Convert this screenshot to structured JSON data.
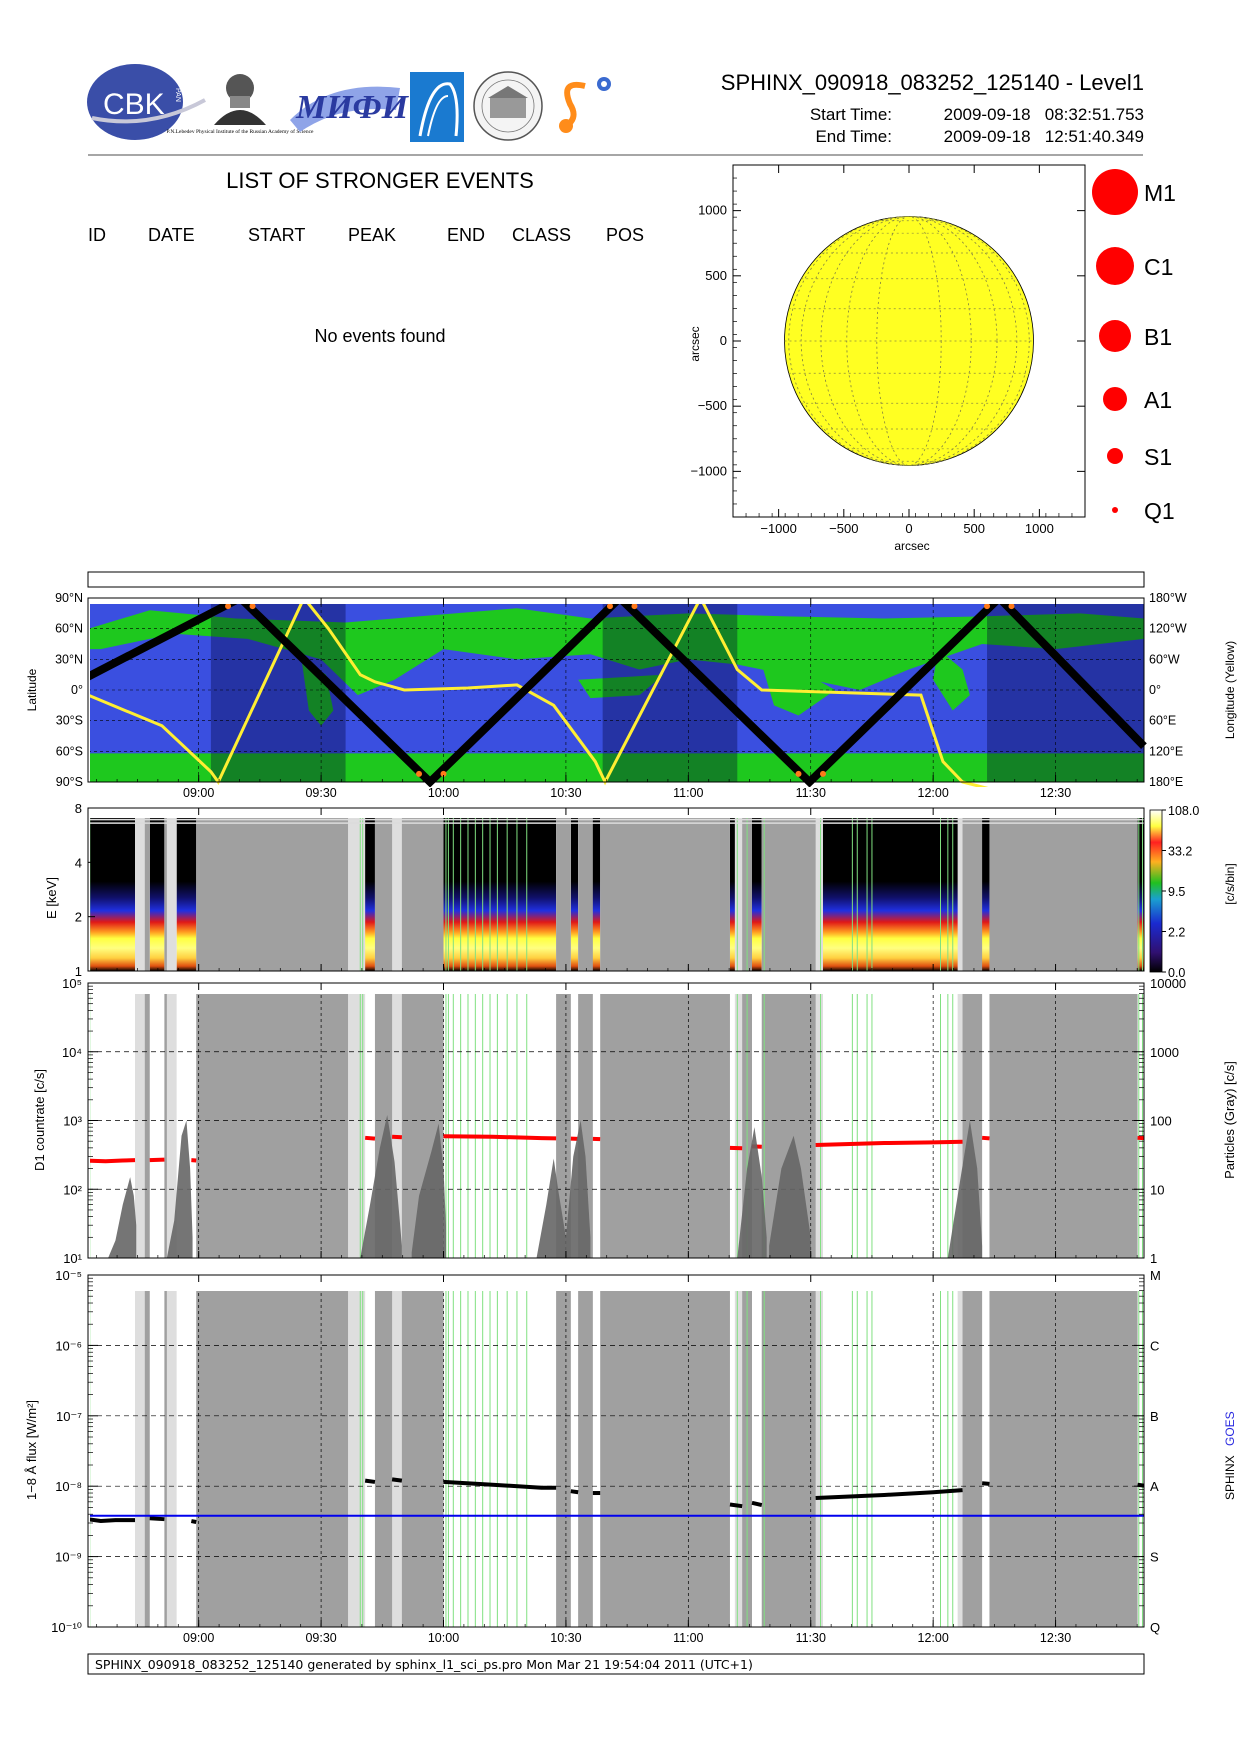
{
  "header": {
    "title": "SPHINX_090918_083252_125140 - Level1",
    "start_label": "Start Time:",
    "start_value": "2009-09-18   08:32:51.753",
    "end_label": "End Time:",
    "end_value": "2009-09-18   12:51:40.349"
  },
  "logos": {
    "cbk": "CBK",
    "cbk_small": "PAN",
    "lebedev_caption": "P.N.Lebedev Physical Institute of the Russian Academy of Science",
    "mifi": "МИФИ"
  },
  "events": {
    "title": "LIST OF STRONGER EVENTS",
    "columns": [
      "ID",
      "DATE",
      "START",
      "PEAK",
      "END",
      "CLASS",
      "POS"
    ],
    "empty_text": "No events found"
  },
  "sun_legend": [
    "M1",
    "C1",
    "B1",
    "A1",
    "S1",
    "Q1"
  ],
  "footer": "SPHINX_090918_083252_125140 generated by sphinx_l1_sci_ps.pro Mon Mar 21 19:54:04 2011 (UTC+1)",
  "colors": {
    "sun_fill": "#ffff22",
    "flare_marker": "#ff0000",
    "ocean": "#3a4fe0",
    "land": "#1ec81e",
    "track": "#000000",
    "longitude_line": "#ffee33",
    "countrate": "#ff0000",
    "particles": "#666666",
    "sphinx_flux": "#000000",
    "goes_flux": "#0000ee",
    "gap_dark": "#a0a0a0",
    "gap_light": "#dedede"
  },
  "chart_data": [
    {
      "type": "scatter",
      "name": "sun_disk_map",
      "xlabel": "arcsec",
      "ylabel": "arcsec",
      "xlim": [
        -1350,
        1350
      ],
      "ylim": [
        -1350,
        1350
      ],
      "xticks": [
        -1000,
        -500,
        0,
        500,
        1000
      ],
      "yticks": [
        -1000,
        -500,
        0,
        500,
        1000
      ],
      "xtick_labels": [
        "−1000",
        "−500",
        "0",
        "500",
        "1000"
      ],
      "ytick_labels": [
        "−1000",
        "−500",
        "0",
        "500",
        "1000"
      ],
      "disk_radius": 955,
      "events": []
    },
    {
      "type": "line",
      "name": "orbit_map",
      "x_unit": "UT hours",
      "xlim": [
        8.5479,
        12.8612
      ],
      "ylabel": "Latitude",
      "ylabel_right": "Longitude (Yellow)",
      "ylim": [
        -90,
        90
      ],
      "yticks": [
        90,
        60,
        30,
        0,
        -30,
        -60,
        -90
      ],
      "ytick_labels": [
        "90°N",
        "60°N",
        "30°N",
        "0°",
        "30°S",
        "60°S",
        "90°S"
      ],
      "ytick_labels_right": [
        "180°W",
        "120°W",
        "60°W",
        "0°",
        "60°E",
        "120°E",
        "180°E"
      ],
      "latitude_track": [
        [
          8.548,
          13
        ],
        [
          9.17,
          90
        ],
        [
          9.945,
          -90
        ],
        [
          10.72,
          90
        ],
        [
          11.495,
          -90
        ],
        [
          12.27,
          90
        ],
        [
          12.861,
          -55
        ]
      ],
      "longitude_track": [
        [
          8.548,
          -5
        ],
        [
          8.85,
          -35
        ],
        [
          9.05,
          -80
        ],
        [
          9.08,
          -90
        ],
        [
          9.43,
          90
        ],
        [
          9.53,
          60
        ],
        [
          9.66,
          15
        ],
        [
          9.72,
          8
        ],
        [
          9.84,
          0
        ],
        [
          10.1,
          2
        ],
        [
          10.3,
          5
        ],
        [
          10.45,
          -15
        ],
        [
          10.62,
          -70
        ],
        [
          10.66,
          -90
        ],
        [
          11.05,
          90
        ],
        [
          11.2,
          20
        ],
        [
          11.3,
          0
        ],
        [
          11.95,
          -5
        ],
        [
          12.04,
          -70
        ],
        [
          12.12,
          -90
        ],
        [
          12.45,
          -110
        ],
        [
          12.861,
          -120
        ]
      ],
      "night_intervals": [
        [
          9.05,
          9.6
        ],
        [
          10.65,
          11.2
        ],
        [
          12.22,
          12.861
        ]
      ]
    },
    {
      "type": "heatmap",
      "name": "spectrogram",
      "ylabel": "E [keV]",
      "y_scale": "log",
      "ylim": [
        1,
        8
      ],
      "yticks": [
        1,
        2,
        4,
        8
      ],
      "colorbar_label": "[c/s/bin]",
      "colorbar_ticks": [
        "108.0",
        "33.2",
        "9.5",
        "2.2",
        "0.0"
      ]
    },
    {
      "type": "line",
      "name": "countrate",
      "ylabel": "D1 countrate [c/s]",
      "ylabel_right": "Particles (Gray) [c/s]",
      "y_scale": "log",
      "ylim": [
        10,
        100000
      ],
      "ytick_labels": [
        "10¹",
        "10²",
        "10³",
        "10⁴",
        "10⁵"
      ],
      "ytick_labels_right": [
        "1",
        "10",
        "100",
        "1000",
        "10000"
      ],
      "series": [
        {
          "color": "#ff0000",
          "segments": [
            [
              [
                8.556,
                260
              ],
              [
                8.62,
                255
              ],
              [
                8.69,
                262
              ],
              [
                8.74,
                265
              ]
            ],
            [
              [
                8.8,
                265
              ],
              [
                8.86,
                270
              ]
            ],
            [
              [
                8.97,
                265
              ],
              [
                8.99,
                262
              ]
            ],
            [
              [
                9.68,
                560
              ],
              [
                9.72,
                545
              ]
            ],
            [
              [
                9.79,
                580
              ],
              [
                9.83,
                570
              ]
            ],
            [
              [
                10.0,
                590
              ],
              [
                10.2,
                580
              ],
              [
                10.4,
                555
              ],
              [
                10.46,
                550
              ]
            ],
            [
              [
                10.52,
                545
              ],
              [
                10.55,
                540
              ]
            ],
            [
              [
                10.61,
                540
              ],
              [
                10.64,
                535
              ]
            ],
            [
              [
                11.17,
                400
              ],
              [
                11.22,
                395
              ]
            ],
            [
              [
                11.26,
                420
              ],
              [
                11.3,
                415
              ]
            ],
            [
              [
                11.52,
                440
              ],
              [
                11.8,
                470
              ],
              [
                12.0,
                480
              ],
              [
                12.12,
                490
              ]
            ],
            [
              [
                12.2,
                560
              ],
              [
                12.23,
                550
              ]
            ],
            [
              [
                12.835,
                560
              ],
              [
                12.86,
                555
              ]
            ]
          ]
        },
        {
          "color": "#666666",
          "segments": [
            [
              [
                8.63,
                10
              ],
              [
                8.66,
                18
              ],
              [
                8.69,
                60
              ],
              [
                8.72,
                150
              ],
              [
                8.735,
                80
              ],
              [
                8.745,
                30
              ]
            ],
            [
              [
                8.87,
                10
              ],
              [
                8.9,
                35
              ],
              [
                8.93,
                600
              ],
              [
                8.95,
                1000
              ],
              [
                8.965,
                200
              ],
              [
                8.975,
                20
              ]
            ],
            [
              [
                9.66,
                10
              ],
              [
                9.7,
                60
              ],
              [
                9.74,
                400
              ],
              [
                9.77,
                1200
              ],
              [
                9.8,
                250
              ],
              [
                9.82,
                40
              ],
              [
                9.83,
                15
              ]
            ],
            [
              [
                9.87,
                12
              ],
              [
                9.9,
                80
              ],
              [
                9.95,
                350
              ],
              [
                9.98,
                900
              ],
              [
                10.0,
                200
              ],
              [
                10.01,
                30
              ]
            ],
            [
              [
                10.38,
                10
              ],
              [
                10.42,
                60
              ],
              [
                10.45,
                280
              ],
              [
                10.47,
                90
              ],
              [
                10.5,
                20
              ]
            ],
            [
              [
                10.5,
                20
              ],
              [
                10.53,
                300
              ],
              [
                10.56,
                1000
              ],
              [
                10.58,
                300
              ],
              [
                10.6,
                20
              ]
            ],
            [
              [
                11.2,
                10
              ],
              [
                11.24,
                200
              ],
              [
                11.27,
                800
              ],
              [
                11.3,
                150
              ],
              [
                11.32,
                20
              ]
            ],
            [
              [
                11.33,
                15
              ],
              [
                11.38,
                200
              ],
              [
                11.43,
                600
              ],
              [
                11.46,
                200
              ],
              [
                11.5,
                20
              ]
            ],
            [
              [
                12.06,
                10
              ],
              [
                12.1,
                80
              ],
              [
                12.15,
                1000
              ],
              [
                12.18,
                200
              ],
              [
                12.2,
                15
              ]
            ]
          ]
        }
      ]
    },
    {
      "type": "line",
      "name": "xray_flux",
      "ylabel": "1−8 Å flux [W/m²]",
      "ylabel_right_1": "SPHINX",
      "ylabel_right_2": "GOES",
      "y_scale": "log",
      "ylim": [
        1e-10,
        1e-05
      ],
      "ytick_labels": [
        "10⁻¹⁰",
        "10⁻⁹",
        "10⁻⁸",
        "10⁻⁷",
        "10⁻⁶",
        "10⁻⁵"
      ],
      "class_labels": [
        "Q",
        "S",
        "A",
        "B",
        "C",
        "M"
      ],
      "series": [
        {
          "name": "SPHINX",
          "color": "#000000",
          "segments": [
            [
              [
                8.548,
                3.4e-09
              ],
              [
                8.6,
                3.2e-09
              ],
              [
                8.66,
                3.3e-09
              ],
              [
                8.72,
                3.3e-09
              ],
              [
                8.74,
                3.3e-09
              ]
            ],
            [
              [
                8.8,
                3.5e-09
              ],
              [
                8.86,
                3.4e-09
              ]
            ],
            [
              [
                8.97,
                3.2e-09
              ],
              [
                8.99,
                3.1e-09
              ]
            ],
            [
              [
                9.68,
                1.2e-08
              ],
              [
                9.72,
                1.15e-08
              ]
            ],
            [
              [
                9.79,
                1.25e-08
              ],
              [
                9.83,
                1.2e-08
              ]
            ],
            [
              [
                10.0,
                1.15e-08
              ],
              [
                10.2,
                1.05e-08
              ],
              [
                10.4,
                9.5e-09
              ],
              [
                10.46,
                9.5e-09
              ]
            ],
            [
              [
                10.52,
                8.5e-09
              ],
              [
                10.55,
                8.2e-09
              ]
            ],
            [
              [
                10.61,
                8e-09
              ],
              [
                10.64,
                8e-09
              ]
            ],
            [
              [
                11.17,
                5.5e-09
              ],
              [
                11.22,
                5.2e-09
              ]
            ],
            [
              [
                11.26,
                5.8e-09
              ],
              [
                11.3,
                5.4e-09
              ]
            ],
            [
              [
                11.52,
                6.8e-09
              ],
              [
                11.8,
                7.5e-09
              ],
              [
                12.0,
                8.2e-09
              ],
              [
                12.12,
                8.8e-09
              ]
            ],
            [
              [
                12.2,
                1.1e-08
              ],
              [
                12.23,
                1.08e-08
              ]
            ],
            [
              [
                12.835,
                1.05e-08
              ],
              [
                12.86,
                1.02e-08
              ]
            ]
          ]
        },
        {
          "name": "GOES",
          "color": "#0000ee",
          "segments": [
            [
              [
                8.548,
                3.8e-09
              ],
              [
                12.861,
                3.8e-09
              ]
            ]
          ]
        }
      ]
    },
    {
      "type": "table",
      "name": "time_axis",
      "xlim": [
        8.5479,
        12.8612
      ],
      "xticks": [
        9.0,
        9.5,
        10.0,
        10.5,
        11.0,
        11.5,
        12.0,
        12.5
      ],
      "xtick_labels": [
        "09:00",
        "09:30",
        "10:00",
        "10:30",
        "11:00",
        "11:30",
        "12:00",
        "12:30"
      ],
      "dark_gaps": [
        [
          8.78,
          8.8
        ],
        [
          8.86,
          8.87
        ],
        [
          8.99,
          9.61
        ],
        [
          9.72,
          9.79
        ],
        [
          9.83,
          10.0
        ],
        [
          10.46,
          10.52
        ],
        [
          10.55,
          10.61
        ],
        [
          10.64,
          11.17
        ],
        [
          11.22,
          11.26
        ],
        [
          11.3,
          11.52
        ],
        [
          12.12,
          12.2
        ],
        [
          12.23,
          12.835
        ]
      ],
      "light_gaps": [
        [
          8.74,
          8.8
        ],
        [
          8.86,
          8.91
        ],
        [
          9.61,
          9.68
        ],
        [
          9.72,
          9.87
        ],
        [
          10.46,
          10.52
        ],
        [
          10.55,
          10.6
        ],
        [
          11.19,
          11.24
        ],
        [
          11.3,
          11.55
        ],
        [
          12.1,
          12.16
        ]
      ],
      "green_lines": [
        8.555,
        9.66,
        9.67,
        10.01,
        10.02,
        10.04,
        10.07,
        10.1,
        10.13,
        10.16,
        10.19,
        10.22,
        10.26,
        10.3,
        10.34,
        11.2,
        11.24,
        11.31,
        11.54,
        11.67,
        11.69,
        11.73,
        11.75,
        12.03,
        12.06,
        12.08,
        12.84,
        12.855
      ]
    }
  ]
}
